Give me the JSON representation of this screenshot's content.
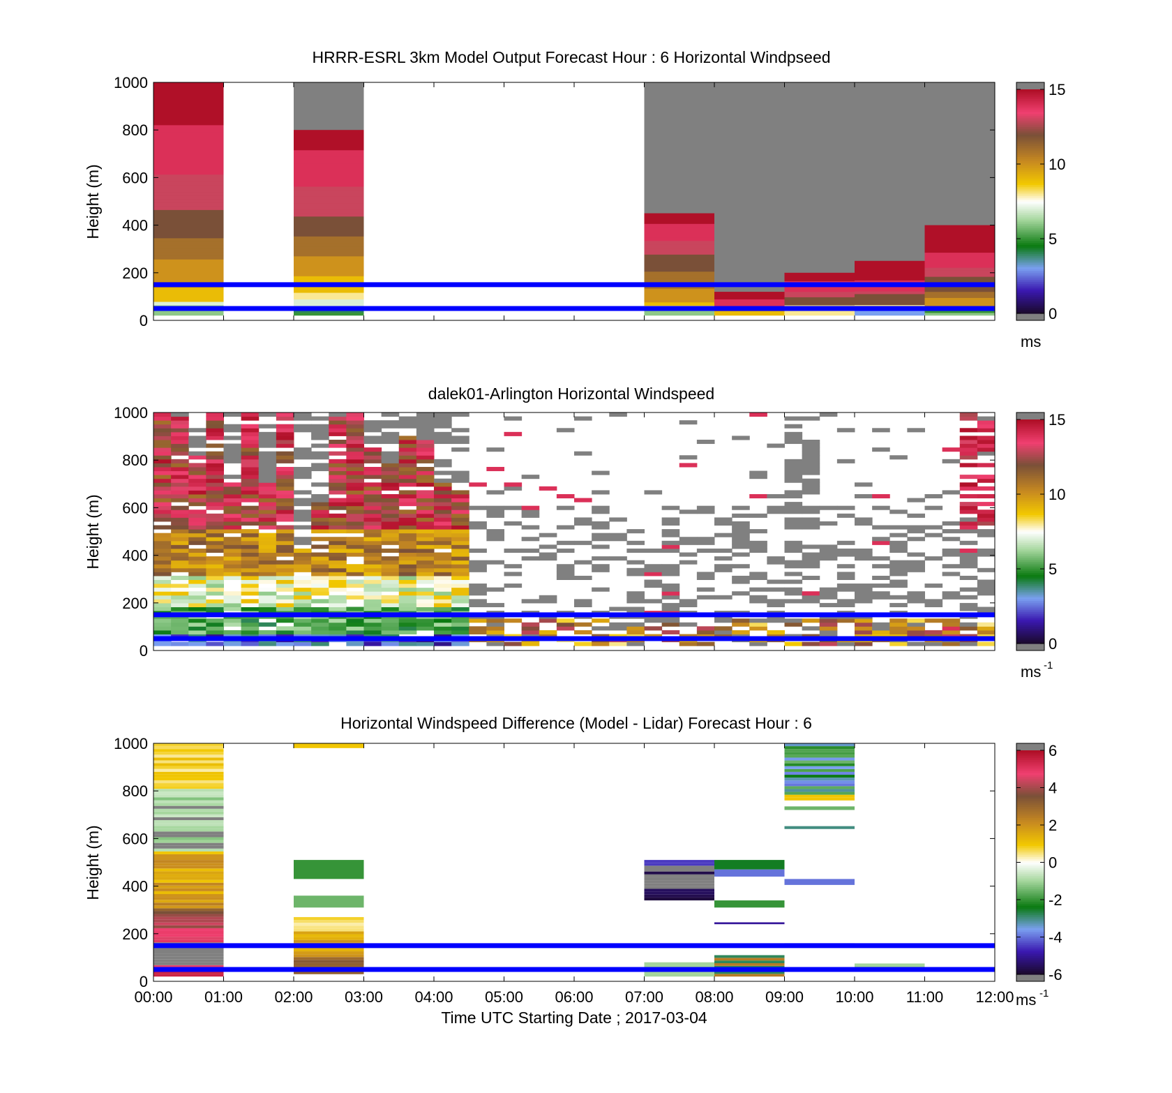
{
  "figure": {
    "xlabel": "Time UTC  Starting Date ; 2017-03-04",
    "xticks": [
      "00:00",
      "01:00",
      "02:00",
      "03:00",
      "04:00",
      "05:00",
      "06:00",
      "07:00",
      "08:00",
      "09:00",
      "10:00",
      "11:00",
      "12:00"
    ],
    "reference_lines_m": [
      50,
      150
    ],
    "reference_line_color": "#0000ff"
  },
  "chart_data": [
    {
      "type": "heatmap",
      "title": "HRRR-ESRL 3km Model Output   Forecast Hour : 6 Horizontal Windpseed",
      "ylabel": "Height (m)",
      "ylim": [
        0,
        1000
      ],
      "yticks": [
        "0",
        "200",
        "400",
        "600",
        "800",
        "1000"
      ],
      "xlim_hours": [
        0,
        12
      ],
      "colorbar": {
        "min": 0,
        "max": 15,
        "ticks": [
          "0",
          "5",
          "10",
          "15"
        ],
        "unit": "ms",
        "unit_sup": ""
      },
      "columns": [
        {
          "t": 0,
          "top": 1000,
          "values": [
            6,
            6,
            6,
            7,
            9,
            9,
            9,
            9,
            10,
            10,
            10,
            10,
            10,
            10,
            10,
            10,
            11,
            11,
            11,
            11,
            11,
            11,
            12,
            12,
            12,
            12,
            12,
            12,
            12,
            12,
            13,
            13,
            13,
            13,
            13,
            13,
            13,
            13,
            13,
            13,
            14,
            14,
            14,
            14,
            14,
            14,
            14,
            14,
            14,
            14,
            14,
            14,
            14,
            14,
            15,
            15,
            15,
            15,
            15,
            15,
            15,
            15,
            15,
            15,
            15,
            15
          ]
        },
        {
          "t": 2,
          "top": 800,
          "values": [
            5,
            4,
            6,
            7,
            7,
            8,
            8,
            9,
            9,
            9,
            9,
            9,
            10,
            10,
            10,
            10,
            10,
            10,
            11,
            11,
            11,
            11,
            11,
            11,
            12,
            12,
            12,
            12,
            12,
            12,
            13,
            13,
            13,
            13,
            13,
            13,
            13,
            13,
            13,
            14,
            14,
            14,
            14,
            14,
            14,
            14,
            14,
            14,
            14,
            14,
            15,
            15,
            15,
            15,
            15,
            15
          ]
        },
        {
          "t": 7,
          "top": 450,
          "values": [
            6,
            6,
            8,
            9,
            10,
            10,
            10,
            10,
            11,
            11,
            11,
            11,
            11,
            12,
            12,
            12,
            12,
            12,
            13,
            13,
            13,
            13,
            14,
            14,
            14,
            14,
            14,
            15,
            15,
            15
          ]
        },
        {
          "t": 8,
          "top": 120,
          "values": [
            9,
            9,
            10,
            14,
            14,
            14,
            14,
            15,
            15,
            15
          ]
        },
        {
          "t": 9,
          "top": 200,
          "values": [
            8,
            8,
            7,
            8,
            12,
            12,
            12,
            13,
            13,
            14,
            14,
            14,
            14,
            15,
            15,
            15
          ]
        },
        {
          "t": 10,
          "top": 250,
          "values": [
            3,
            3,
            3,
            8,
            12,
            12,
            12,
            12,
            13,
            14,
            14,
            14,
            14,
            15,
            15,
            15,
            15,
            15,
            15,
            15
          ]
        },
        {
          "t": 11,
          "top": 400,
          "values": [
            6,
            5,
            10,
            10,
            10,
            10,
            11,
            11,
            12,
            12,
            12,
            12,
            12,
            13,
            13,
            13,
            14,
            14,
            14,
            14,
            14,
            15,
            15,
            15,
            15,
            15,
            15,
            15,
            15,
            15
          ]
        }
      ],
      "blank_hours": [
        1,
        3,
        4,
        5,
        6
      ],
      "missing_above_top": "grey"
    },
    {
      "type": "heatmap",
      "title": "dalek01-Arlington  Horizontal Windspeed",
      "ylabel": "Height (m)",
      "ylim": [
        0,
        1000
      ],
      "yticks": [
        "0",
        "200",
        "400",
        "600",
        "800",
        "1000"
      ],
      "xlim_hours": [
        0,
        12
      ],
      "colorbar": {
        "min": 0,
        "max": 15,
        "ticks": [
          "0",
          "5",
          "10",
          "15"
        ],
        "unit": "ms",
        "unit_sup": "-1"
      },
      "profile_interval_min": 15,
      "notes": "dense lidar profiles; low-level jet 4-6 m/s below 200 m, 10-15 m/s aloft 00-04 UTC; sparse returns after 04:30 UTC"
    },
    {
      "type": "heatmap",
      "title": "Horizontal Windspeed Difference (Model - Lidar) Forecast Hour : 6",
      "ylabel": "Height (m)",
      "ylim": [
        0,
        1000
      ],
      "yticks": [
        "0",
        "200",
        "400",
        "600",
        "800",
        "1000"
      ],
      "xlim_hours": [
        0,
        12
      ],
      "colorbar": {
        "min": -6,
        "max": 6,
        "ticks": [
          "-6",
          "-4",
          "-2",
          "0",
          "2",
          "4",
          "6"
        ],
        "unit": "ms",
        "unit_sup": "-1"
      },
      "segments": [
        {
          "t": 0,
          "from": 20,
          "to": 1000,
          "profile": "hour0"
        },
        {
          "t": 2,
          "from": 980,
          "to": 1000,
          "value": 1
        },
        {
          "t": 2,
          "from": 430,
          "to": 510,
          "value": -2
        },
        {
          "t": 2,
          "from": 310,
          "to": 360,
          "value": -1.5
        },
        {
          "t": 2,
          "from": 30,
          "to": 270,
          "profile": "hour2"
        },
        {
          "t": 7,
          "from": 340,
          "to": 510,
          "profile": "hour7"
        },
        {
          "t": 7,
          "from": 20,
          "to": 80,
          "value": -1
        },
        {
          "t": 8,
          "from": 470,
          "to": 510,
          "value": -2.5
        },
        {
          "t": 8,
          "from": 440,
          "to": 470,
          "value": -4
        },
        {
          "t": 8,
          "from": 310,
          "to": 340,
          "value": -2
        },
        {
          "t": 8,
          "from": 240,
          "to": 248,
          "value": -5
        },
        {
          "t": 8,
          "from": 20,
          "to": 110,
          "profile": "hour8low"
        },
        {
          "t": 9,
          "from": 760,
          "to": 1000,
          "profile": "hour9"
        },
        {
          "t": 9,
          "from": 720,
          "to": 735,
          "value": -1.5
        },
        {
          "t": 9,
          "from": 640,
          "to": 652,
          "value": -3
        },
        {
          "t": 9,
          "from": 405,
          "to": 430,
          "value": -4
        },
        {
          "t": 9,
          "from": 150,
          "to": 160,
          "value": -4
        },
        {
          "t": 9,
          "from": 20,
          "to": 35,
          "value": 0
        },
        {
          "t": 10,
          "from": 60,
          "to": 75,
          "value": -1
        }
      ]
    }
  ]
}
